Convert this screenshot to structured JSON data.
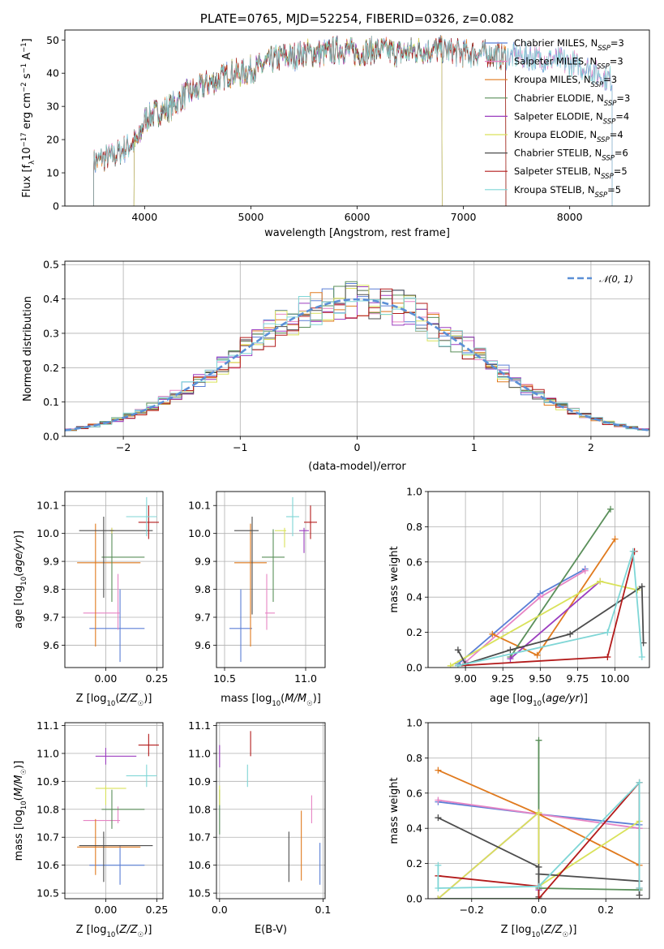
{
  "colors": {
    "Chabrier MILES": "#5b7fd6",
    "Salpeter MILES": "#e684c4",
    "Kroupa MILES": "#e07a1e",
    "Chabrier ELODIE": "#5a8f5a",
    "Salpeter ELODIE": "#9b3dbf",
    "Kroupa ELODIE": "#d9e25a",
    "Chabrier STELIB": "#4d4d4d",
    "Salpeter STELIB": "#b31b1b",
    "Kroupa STELIB": "#7fd6d6",
    "normal": "#5b8fd6"
  },
  "chart_data": [
    {
      "id": "spectrum",
      "type": "line",
      "title": "PLATE=0765, MJD=52254, FIBERID=0326, z=0.082",
      "xlabel": "wavelength [Angstrom, rest frame]",
      "ylabel": "Flux [f_λ10^-17 erg cm^-2 s^-1 A^-1]",
      "xlim": [
        3250,
        8750
      ],
      "ylim": [
        0,
        53
      ],
      "xticks": [
        "4000",
        "5000",
        "6000",
        "7000",
        "8000"
      ],
      "yticks": [
        "0",
        "10",
        "20",
        "30",
        "40",
        "50"
      ],
      "continuum": {
        "x": [
          3520,
          3600,
          3700,
          3800,
          3900,
          3950,
          4000,
          4100,
          4200,
          4300,
          4400,
          4500,
          4600,
          4700,
          4800,
          4900,
          5000,
          5100,
          5200,
          5300,
          5400,
          5500,
          5600,
          5700,
          5800,
          5900,
          6000,
          6200,
          6400,
          6600,
          6800,
          7000,
          7200,
          7400,
          7600,
          7800,
          8000,
          8200,
          8300,
          8400
        ],
        "y": [
          13,
          14,
          15,
          17,
          19,
          20,
          26,
          28,
          29,
          31,
          34,
          35,
          37,
          38,
          40,
          40,
          41,
          42,
          44,
          45,
          45,
          46,
          46,
          46,
          47,
          47,
          46,
          47,
          46,
          47,
          47,
          46,
          46,
          45,
          45,
          44,
          43,
          41,
          39,
          38
        ]
      },
      "legend": [
        {
          "name": "Chabrier MILES",
          "nssp": "3"
        },
        {
          "name": "Salpeter MILES",
          "nssp": "3"
        },
        {
          "name": "Kroupa MILES",
          "nssp": "3"
        },
        {
          "name": "Chabrier ELODIE",
          "nssp": "3"
        },
        {
          "name": "Salpeter ELODIE",
          "nssp": "4"
        },
        {
          "name": "Kroupa ELODIE",
          "nssp": "4"
        },
        {
          "name": "Chabrier STELIB",
          "nssp": "6"
        },
        {
          "name": "Salpeter STELIB",
          "nssp": "5"
        },
        {
          "name": "Kroupa STELIB",
          "nssp": "5"
        }
      ],
      "legend_placement": "upper-right"
    },
    {
      "id": "residuals",
      "type": "histogram",
      "xlabel": "(data-model)/error",
      "ylabel": "Normed distribution",
      "xlim": [
        -2.5,
        2.5
      ],
      "ylim": [
        0,
        0.51
      ],
      "xticks": [
        "−2",
        "−1",
        "0",
        "1",
        "2"
      ],
      "yticks": [
        "0.0",
        "0.1",
        "0.2",
        "0.3",
        "0.4",
        "0.5"
      ],
      "grid": true,
      "bin_width": 0.1,
      "legend": "𝒩(0, 1)",
      "legend_placement": "upper-right"
    },
    {
      "id": "age-vs-Z",
      "type": "errorbar",
      "xlabel": "Z [log10(Z/Z☉)]",
      "ylabel": "age  [log10(age/yr)]",
      "xlim": [
        -0.2,
        0.28
      ],
      "ylim": [
        9.52,
        10.15
      ],
      "xticks": [
        "0.00",
        "0.25"
      ],
      "yticks": [
        "9.6",
        "9.7",
        "9.8",
        "9.9",
        "10.0",
        "10.1"
      ],
      "grid": true,
      "points": [
        {
          "series": "Chabrier MILES",
          "x": 0.07,
          "y": 9.66,
          "xerr": [
            0.15,
            0.12
          ],
          "yerr": [
            0.12,
            0.14
          ]
        },
        {
          "series": "Salpeter MILES",
          "x": 0.06,
          "y": 9.715,
          "xerr": [
            0.17,
            0.01
          ],
          "yerr": [
            0.06,
            0.14
          ]
        },
        {
          "series": "Kroupa MILES",
          "x": -0.05,
          "y": 9.895,
          "xerr": [
            0.09,
            0.22
          ],
          "yerr": [
            0.3,
            0.14
          ]
        },
        {
          "series": "Chabrier ELODIE",
          "x": 0.03,
          "y": 9.915,
          "xerr": [
            0.05,
            0.16
          ],
          "yerr": [
            0.16,
            0.1
          ]
        },
        {
          "series": "Salpeter ELODIE",
          "x": 0.03,
          "y": 10.01,
          "xerr": [
            0.01,
            0.01
          ],
          "yerr": [
            0.01,
            0.01
          ]
        },
        {
          "series": "Kroupa ELODIE",
          "x": 0.03,
          "y": 10.01,
          "xerr": [
            0.01,
            0.01
          ],
          "yerr": [
            0.01,
            0.01
          ]
        },
        {
          "series": "Chabrier STELIB",
          "x": -0.01,
          "y": 10.01,
          "xerr": [
            0.12,
            0.24
          ],
          "yerr": [
            0.24,
            0.05
          ]
        },
        {
          "series": "Salpeter STELIB",
          "x": 0.21,
          "y": 10.04,
          "xerr": [
            0.05,
            0.05
          ],
          "yerr": [
            0.06,
            0.06
          ]
        },
        {
          "series": "Kroupa STELIB",
          "x": 0.2,
          "y": 10.06,
          "xerr": [
            0.1,
            0.05
          ],
          "yerr": [
            0.07,
            0.07
          ]
        }
      ]
    },
    {
      "id": "age-vs-mass",
      "type": "errorbar",
      "xlabel": "mass [log10(M/M☉)]",
      "xlim": [
        10.45,
        11.12
      ],
      "ylim": [
        9.52,
        10.15
      ],
      "xticks": [
        "10.5",
        "11.0"
      ],
      "yticks": [
        "9.6",
        "9.7",
        "9.8",
        "9.9",
        "10.0",
        "10.1"
      ],
      "grid": true,
      "points": [
        {
          "series": "Chabrier MILES",
          "x": 10.6,
          "y": 9.66,
          "xerr": [
            0.07,
            0.07
          ],
          "yerr": [
            0.12,
            0.14
          ]
        },
        {
          "series": "Salpeter MILES",
          "x": 10.76,
          "y": 9.715,
          "xerr": [
            0.01,
            0.05
          ],
          "yerr": [
            0.06,
            0.14
          ]
        },
        {
          "series": "Kroupa MILES",
          "x": 10.66,
          "y": 9.895,
          "xerr": [
            0.1,
            0.1
          ],
          "yerr": [
            0.3,
            0.14
          ]
        },
        {
          "series": "Chabrier ELODIE",
          "x": 10.8,
          "y": 9.915,
          "xerr": [
            0.07,
            0.07
          ],
          "yerr": [
            0.16,
            0.1
          ]
        },
        {
          "series": "Salpeter ELODIE",
          "x": 10.99,
          "y": 10.01,
          "xerr": [
            0.03,
            0.03
          ],
          "yerr": [
            0.08,
            0.01
          ]
        },
        {
          "series": "Kroupa ELODIE",
          "x": 10.87,
          "y": 10.01,
          "xerr": [
            0.06,
            0.01
          ],
          "yerr": [
            0.06,
            0.01
          ]
        },
        {
          "series": "Chabrier STELIB",
          "x": 10.67,
          "y": 10.01,
          "xerr": [
            0.11,
            0.04
          ],
          "yerr": [
            0.3,
            0.05
          ]
        },
        {
          "series": "Salpeter STELIB",
          "x": 11.03,
          "y": 10.04,
          "xerr": [
            0.04,
            0.04
          ],
          "yerr": [
            0.06,
            0.06
          ]
        },
        {
          "series": "Kroupa STELIB",
          "x": 10.92,
          "y": 10.06,
          "xerr": [
            0.04,
            0.04
          ],
          "yerr": [
            0.07,
            0.07
          ]
        }
      ]
    },
    {
      "id": "weight-vs-age",
      "type": "line",
      "xlabel": "age  [log10(age/yr)]",
      "ylabel": "mass weight",
      "xlim": [
        8.75,
        10.23
      ],
      "ylim": [
        0,
        1
      ],
      "xticks": [
        "9.00",
        "9.25",
        "9.50",
        "9.75",
        "10.00"
      ],
      "yticks": [
        "0.0",
        "0.2",
        "0.4",
        "0.6",
        "0.8",
        "1.0"
      ],
      "grid": true,
      "series": [
        {
          "name": "Chabrier MILES",
          "x": [
            8.95,
            9.5,
            9.8
          ],
          "y": [
            0.02,
            0.42,
            0.56
          ]
        },
        {
          "name": "Salpeter MILES",
          "x": [
            9.0,
            9.5,
            9.8
          ],
          "y": [
            0.03,
            0.4,
            0.55
          ]
        },
        {
          "name": "Kroupa MILES",
          "x": [
            9.18,
            9.48,
            10.0
          ],
          "y": [
            0.19,
            0.07,
            0.73
          ]
        },
        {
          "name": "Chabrier ELODIE",
          "x": [
            9.3,
            9.97
          ],
          "y": [
            0.06,
            0.9
          ]
        },
        {
          "name": "Salpeter ELODIE",
          "x": [
            9.3,
            9.9
          ],
          "y": [
            0.05,
            0.49
          ]
        },
        {
          "name": "Kroupa ELODIE",
          "x": [
            8.9,
            9.9,
            10.15
          ],
          "y": [
            0.01,
            0.49,
            0.44
          ]
        },
        {
          "name": "Chabrier STELIB",
          "x": [
            8.95,
            9.0,
            9.3,
            9.7,
            10.18,
            10.19
          ],
          "y": [
            0.1,
            0.02,
            0.1,
            0.19,
            0.46,
            0.14
          ]
        },
        {
          "name": "Salpeter STELIB",
          "x": [
            8.95,
            9.95,
            10.13
          ],
          "y": [
            0.01,
            0.06,
            0.66
          ]
        },
        {
          "name": "Kroupa STELIB",
          "x": [
            8.95,
            9.95,
            10.12,
            10.18
          ],
          "y": [
            0.01,
            0.2,
            0.66,
            0.06
          ]
        }
      ]
    },
    {
      "id": "mass-vs-Z",
      "type": "errorbar",
      "xlabel": "Z [log10(Z/Z☉)]",
      "ylabel": "mass [log10(M/M☉)]",
      "xlim": [
        -0.2,
        0.28
      ],
      "ylim": [
        10.48,
        11.11
      ],
      "xticks": [
        "0.00",
        "0.25"
      ],
      "yticks": [
        "10.5",
        "10.6",
        "10.7",
        "10.8",
        "10.9",
        "11.0",
        "11.1"
      ],
      "grid": true,
      "points": [
        {
          "series": "Chabrier MILES",
          "x": 0.07,
          "y": 10.6,
          "xerr": [
            0.15,
            0.12
          ],
          "yerr": [
            0.07,
            0.07
          ]
        },
        {
          "series": "Salpeter MILES",
          "x": 0.06,
          "y": 10.76,
          "xerr": [
            0.17,
            0.01
          ],
          "yerr": [
            0.01,
            0.05
          ]
        },
        {
          "series": "Kroupa MILES",
          "x": -0.05,
          "y": 10.665,
          "xerr": [
            0.09,
            0.22
          ],
          "yerr": [
            0.1,
            0.1
          ]
        },
        {
          "series": "Chabrier ELODIE",
          "x": 0.03,
          "y": 10.8,
          "xerr": [
            0.05,
            0.16
          ],
          "yerr": [
            0.07,
            0.07
          ]
        },
        {
          "series": "Salpeter ELODIE",
          "x": 0.0,
          "y": 10.99,
          "xerr": [
            0.05,
            0.15
          ],
          "yerr": [
            0.03,
            0.03
          ]
        },
        {
          "series": "Kroupa ELODIE",
          "x": 0.0,
          "y": 10.875,
          "xerr": [
            0.05,
            0.1
          ],
          "yerr": [
            0.06,
            0.01
          ]
        },
        {
          "series": "Chabrier STELIB",
          "x": -0.01,
          "y": 10.67,
          "xerr": [
            0.12,
            0.24
          ],
          "yerr": [
            0.13,
            0.05
          ]
        },
        {
          "series": "Salpeter STELIB",
          "x": 0.21,
          "y": 11.03,
          "xerr": [
            0.05,
            0.05
          ],
          "yerr": [
            0.04,
            0.04
          ]
        },
        {
          "series": "Kroupa STELIB",
          "x": 0.2,
          "y": 10.92,
          "xerr": [
            0.1,
            0.05
          ],
          "yerr": [
            0.04,
            0.04
          ]
        }
      ]
    },
    {
      "id": "mass-vs-EBV",
      "type": "errorbar",
      "xlabel": "E(B-V)",
      "xlim": [
        -0.003,
        0.102
      ],
      "ylim": [
        10.48,
        11.11
      ],
      "xticks": [
        "0.0",
        "0.1"
      ],
      "yticks": [
        "10.5",
        "10.6",
        "10.7",
        "10.8",
        "10.9",
        "11.0",
        "11.1"
      ],
      "grid": true,
      "points": [
        {
          "series": "Chabrier MILES",
          "x": 0.097,
          "y": 10.6,
          "xerr": [
            0,
            0
          ],
          "yerr": [
            0.07,
            0.08
          ]
        },
        {
          "series": "Salpeter MILES",
          "x": 0.089,
          "y": 10.76,
          "xerr": [
            0,
            0
          ],
          "yerr": [
            0.01,
            0.09
          ]
        },
        {
          "series": "Kroupa MILES",
          "x": 0.079,
          "y": 10.665,
          "xerr": [
            0,
            0
          ],
          "yerr": [
            0.12,
            0.13
          ]
        },
        {
          "series": "Chabrier ELODIE",
          "x": 0.0,
          "y": 10.8,
          "xerr": [
            0,
            0
          ],
          "yerr": [
            0.09,
            0.07
          ]
        },
        {
          "series": "Salpeter ELODIE",
          "x": 0.0,
          "y": 10.99,
          "xerr": [
            0,
            0
          ],
          "yerr": [
            0.04,
            0.04
          ]
        },
        {
          "series": "Kroupa ELODIE",
          "x": 0.0,
          "y": 10.875,
          "xerr": [
            0,
            0
          ],
          "yerr": [
            0.06,
            0.01
          ]
        },
        {
          "series": "Chabrier STELIB",
          "x": 0.067,
          "y": 10.67,
          "xerr": [
            0,
            0
          ],
          "yerr": [
            0.13,
            0.05
          ]
        },
        {
          "series": "Salpeter STELIB",
          "x": 0.03,
          "y": 11.03,
          "xerr": [
            0,
            0
          ],
          "yerr": [
            0.04,
            0.05
          ]
        },
        {
          "series": "Kroupa STELIB",
          "x": 0.027,
          "y": 10.92,
          "xerr": [
            0,
            0
          ],
          "yerr": [
            0.04,
            0.04
          ]
        }
      ]
    },
    {
      "id": "weight-vs-Z",
      "type": "line",
      "xlabel": "Z [log10(Z/Z☉)]",
      "ylabel": "mass weight",
      "xlim": [
        -0.33,
        0.33
      ],
      "ylim": [
        0,
        1
      ],
      "xticks": [
        "−0.2",
        "0.0",
        "0.2"
      ],
      "yticks": [
        "0.0",
        "0.2",
        "0.4",
        "0.6",
        "0.8",
        "1.0"
      ],
      "grid": true,
      "series": [
        {
          "name": "Chabrier MILES",
          "x": [
            -0.3,
            0.0,
            0.3
          ],
          "y": [
            0.55,
            0.48,
            0.42
          ]
        },
        {
          "name": "Salpeter MILES",
          "x": [
            -0.3,
            0.0,
            0.3
          ],
          "y": [
            0.56,
            0.48,
            0.4
          ]
        },
        {
          "name": "Kroupa MILES",
          "x": [
            -0.3,
            0.0,
            0.3
          ],
          "y": [
            0.73,
            0.48,
            0.19
          ]
        },
        {
          "name": "Chabrier ELODIE",
          "x": [
            -0.3,
            0.0,
            0.0,
            0.0,
            0.3
          ],
          "y": [
            0.0,
            0.0,
            0.9,
            0.06,
            0.05
          ]
        },
        {
          "name": "Salpeter ELODIE",
          "x": [
            -0.3,
            0.0,
            0.0
          ],
          "y": [
            0.0,
            0.49,
            0.05
          ]
        },
        {
          "name": "Kroupa ELODIE",
          "x": [
            -0.3,
            0.0,
            0.0,
            0.3
          ],
          "y": [
            0.0,
            0.49,
            0.07,
            0.44
          ]
        },
        {
          "name": "Chabrier STELIB",
          "x": [
            -0.3,
            0.0,
            0.0,
            0.0,
            0.3,
            0.3
          ],
          "y": [
            0.46,
            0.18,
            0.01,
            0.14,
            0.1,
            0.02
          ]
        },
        {
          "name": "Salpeter STELIB",
          "x": [
            -0.3,
            0.0,
            0.0,
            0.3,
            0.3
          ],
          "y": [
            0.13,
            0.07,
            0.0,
            0.66,
            0.06
          ]
        },
        {
          "name": "Kroupa STELIB",
          "x": [
            -0.3,
            -0.3,
            0.0,
            0.3,
            0.3
          ],
          "y": [
            0.19,
            0.06,
            0.07,
            0.66,
            0.06
          ]
        }
      ]
    }
  ]
}
